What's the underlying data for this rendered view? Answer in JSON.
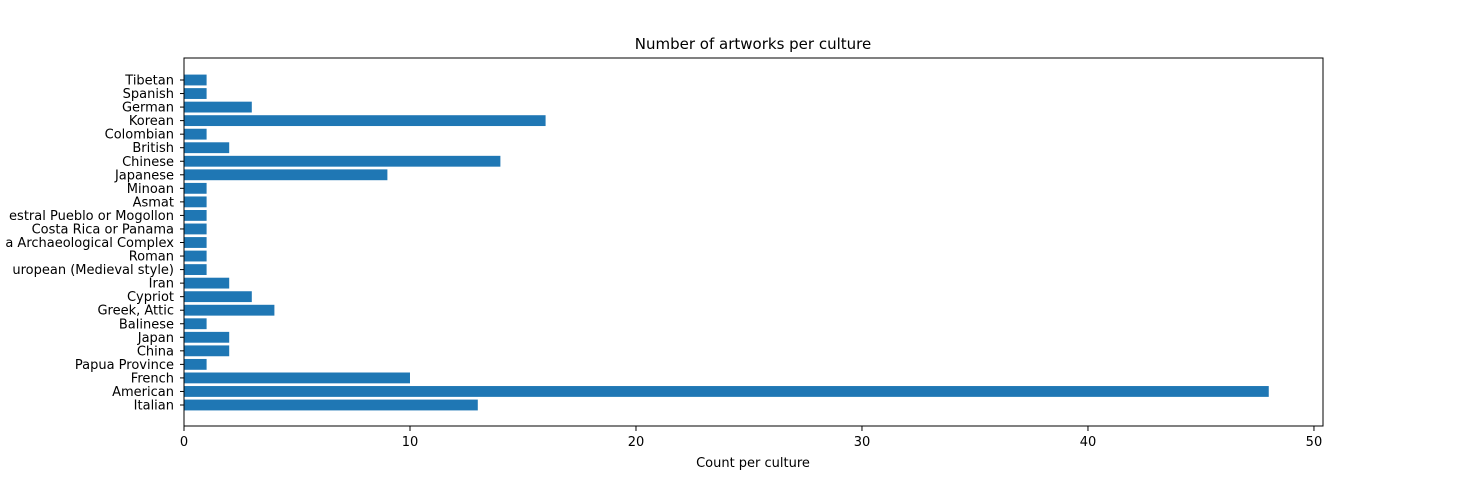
{
  "chart_data": {
    "type": "bar",
    "orientation": "horizontal",
    "title": "Number of artworks per culture",
    "xlabel": "Count per culture",
    "ylabel": "",
    "xlim": [
      0,
      50.4
    ],
    "xticks": [
      0,
      10,
      20,
      30,
      40,
      50
    ],
    "grid": false,
    "categories": [
      "Italian",
      "American",
      "French",
      "Papua Province",
      "China",
      "Japan",
      "Balinese",
      "Greek, Attic",
      "Cypriot",
      "Iran",
      "European (Medieval style)",
      "Roman",
      "Archaeological Complex",
      "Costa Rica or Panama",
      "Ancestral Pueblo or Mogollon",
      "Asmat",
      "Minoan",
      "Japanese",
      "Chinese",
      "British",
      "Colombian",
      "Korean",
      "German",
      "Spanish",
      "Tibetan"
    ],
    "category_labels_as_shown": [
      "Italian",
      "American",
      "French",
      "Papua Province",
      "China",
      "Japan",
      "Balinese",
      "Greek, Attic",
      "Cypriot",
      "Iran",
      "uropean (Medieval style)",
      "Roman",
      "a Archaeological Complex",
      "Costa Rica or Panama",
      "estral Pueblo or Mogollon",
      "Asmat",
      "Minoan",
      "Japanese",
      "Chinese",
      "British",
      "Colombian",
      "Korean",
      "German",
      "Spanish",
      "Tibetan"
    ],
    "values": [
      13,
      48,
      10,
      1,
      2,
      2,
      1,
      4,
      3,
      2,
      1,
      1,
      1,
      1,
      1,
      1,
      1,
      9,
      14,
      2,
      1,
      16,
      3,
      1,
      1
    ],
    "bar_color": "#1f77b4"
  }
}
